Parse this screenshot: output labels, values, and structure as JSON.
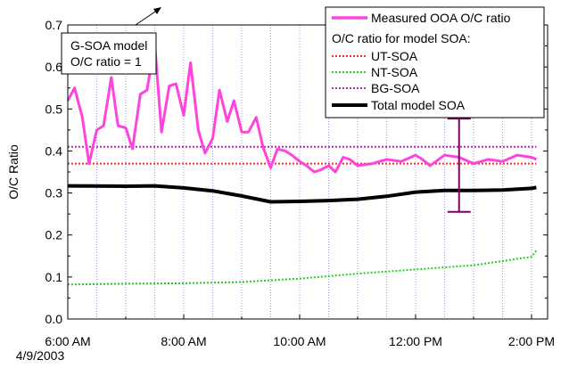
{
  "chart_data": {
    "type": "line",
    "xlabel": "",
    "ylabel": "O/C Ratio",
    "ylim": [
      0,
      0.7
    ],
    "xlim": [
      "6:00 AM",
      "2:05 PM"
    ],
    "y_ticks": [
      "0.0",
      "0.1",
      "0.2",
      "0.3",
      "0.4",
      "0.5",
      "0.6",
      "0.7"
    ],
    "x_ticks": [
      "6:00 AM",
      "8:00 AM",
      "10:00 AM",
      "12:00 PM",
      "2:00 PM"
    ],
    "date_label": "4/9/2003",
    "grid": "vertical dotted lines every 30 min",
    "legend_placement": "top-right",
    "legend_entries": {
      "measured": "Measured OOA O/C ratio",
      "header": "O/C ratio for model SOA:",
      "ut": "UT-SOA",
      "nt": "NT-SOA",
      "bg": "BG-SOA",
      "total": "Total model SOA"
    },
    "annotation": {
      "line1": "G-SOA model",
      "line2": "O/C ratio = 1"
    },
    "series": [
      {
        "name": "Measured OOA O/C ratio",
        "color": "#ff44dd",
        "x": [
          "6:00 AM",
          "6:07 AM",
          "6:15 AM",
          "6:22 AM",
          "6:30 AM",
          "6:37 AM",
          "6:45 AM",
          "6:52 AM",
          "7:00 AM",
          "7:07 AM",
          "7:15 AM",
          "7:22 AM",
          "7:30 AM",
          "7:37 AM",
          "7:45 AM",
          "7:52 AM",
          "8:00 AM",
          "8:07 AM",
          "8:15 AM",
          "8:22 AM",
          "8:30 AM",
          "8:37 AM",
          "8:45 AM",
          "8:52 AM",
          "9:00 AM",
          "9:07 AM",
          "9:15 AM",
          "9:22 AM",
          "9:30 AM",
          "9:37 AM",
          "9:45 AM",
          "9:52 AM",
          "10:00 AM",
          "10:07 AM",
          "10:15 AM",
          "10:22 AM",
          "10:30 AM",
          "10:37 AM",
          "10:45 AM",
          "10:52 AM",
          "11:00 AM",
          "11:15 AM",
          "11:30 AM",
          "11:45 AM",
          "12:00 PM",
          "12:07 PM",
          "12:15 PM",
          "12:30 PM",
          "12:45 PM",
          "1:00 PM",
          "1:15 PM",
          "1:30 PM",
          "1:45 PM",
          "2:00 PM",
          "2:05 PM"
        ],
        "values": [
          0.52,
          0.55,
          0.48,
          0.37,
          0.45,
          0.46,
          0.575,
          0.46,
          0.455,
          0.405,
          0.535,
          0.545,
          0.655,
          0.445,
          0.555,
          0.56,
          0.485,
          0.61,
          0.45,
          0.395,
          0.43,
          0.545,
          0.47,
          0.52,
          0.445,
          0.445,
          0.48,
          0.41,
          0.36,
          0.405,
          0.4,
          0.39,
          0.375,
          0.365,
          0.35,
          0.355,
          0.365,
          0.35,
          0.385,
          0.38,
          0.365,
          0.37,
          0.38,
          0.375,
          0.39,
          0.38,
          0.365,
          0.39,
          0.385,
          0.37,
          0.38,
          0.375,
          0.39,
          0.385,
          0.38
        ]
      },
      {
        "name": "UT-SOA",
        "color": "#ff2a2a",
        "x": [
          "6:00 AM",
          "2:05 PM"
        ],
        "values": [
          0.37,
          0.37
        ]
      },
      {
        "name": "NT-SOA",
        "color": "#22cc22",
        "x": [
          "6:00 AM",
          "7:00 AM",
          "8:00 AM",
          "9:00 AM",
          "10:00 AM",
          "11:00 AM",
          "12:00 PM",
          "1:00 PM",
          "2:00 PM",
          "2:05 PM"
        ],
        "values": [
          0.082,
          0.084,
          0.085,
          0.088,
          0.096,
          0.108,
          0.118,
          0.128,
          0.148,
          0.163
        ]
      },
      {
        "name": "BG-SOA",
        "color": "#b02ab0",
        "x": [
          "6:00 AM",
          "2:05 PM"
        ],
        "values": [
          0.41,
          0.41
        ]
      },
      {
        "name": "Total model SOA",
        "color": "#000000",
        "x": [
          "6:00 AM",
          "7:00 AM",
          "7:30 AM",
          "8:00 AM",
          "8:30 AM",
          "9:00 AM",
          "9:30 AM",
          "10:00 AM",
          "10:30 AM",
          "11:00 AM",
          "11:30 AM",
          "12:00 PM",
          "12:30 PM",
          "1:00 PM",
          "1:30 PM",
          "2:00 PM",
          "2:05 PM"
        ],
        "values": [
          0.317,
          0.316,
          0.317,
          0.312,
          0.305,
          0.293,
          0.279,
          0.28,
          0.282,
          0.285,
          0.292,
          0.302,
          0.306,
          0.306,
          0.307,
          0.311,
          0.313
        ]
      }
    ],
    "error_bar": {
      "x": "12:45 PM",
      "center": 0.366,
      "low": 0.255,
      "high": 0.477,
      "color": "#800060"
    }
  }
}
